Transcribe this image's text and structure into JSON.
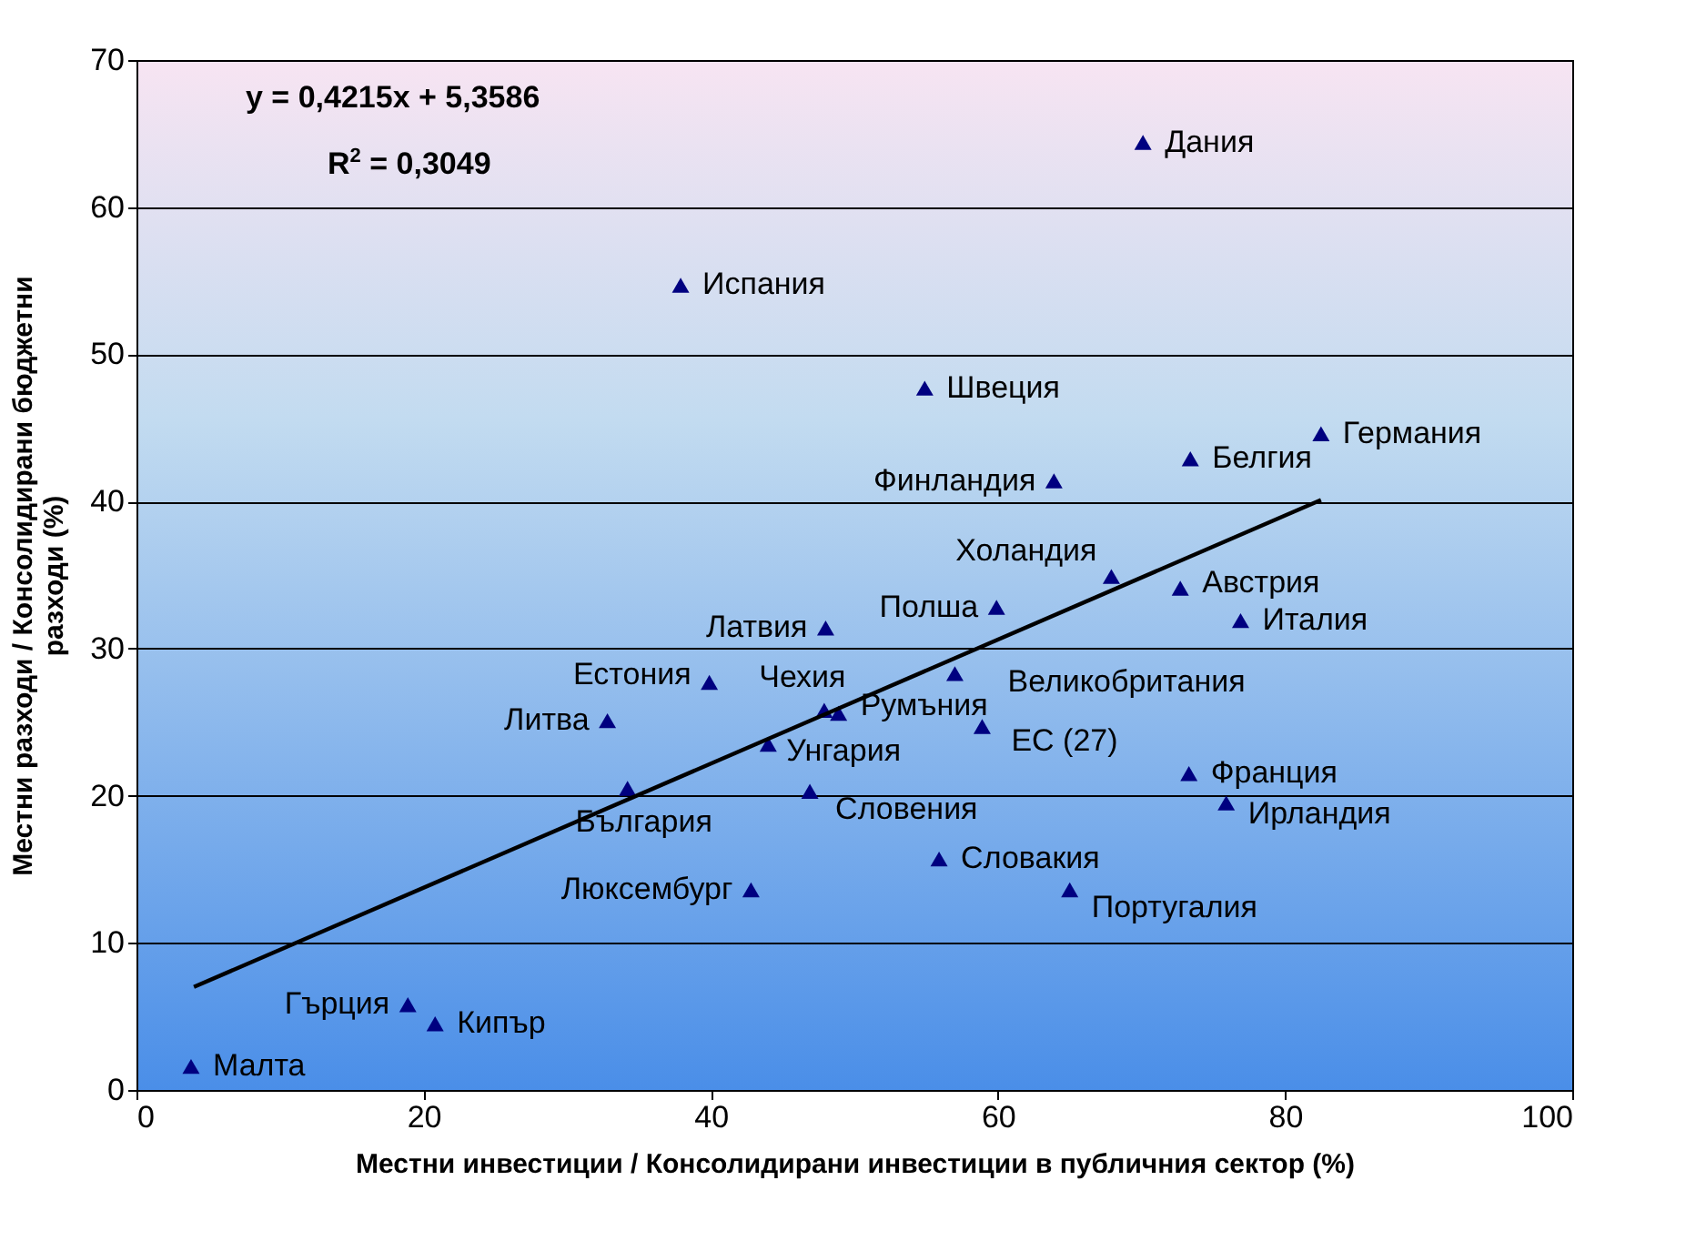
{
  "chart_data": {
    "type": "scatter",
    "xlabel": "Местни инвестиции / Консолидирани инвестиции в публичния сектор (%)",
    "ylabel": "Местни разходи / Консолидирани бюджетни разходи (%)",
    "xlim": [
      0,
      100
    ],
    "xticks": [
      0,
      20,
      40,
      60,
      80,
      100
    ],
    "ylim": [
      0,
      70
    ],
    "yticks": [
      0,
      10,
      20,
      30,
      40,
      50,
      60,
      70
    ],
    "grid": "y",
    "series": [
      {
        "color": "#000080",
        "marker": "triangle",
        "x": [
          70.1,
          37.9,
          54.9,
          82.5,
          73.4,
          63.9,
          67.9,
          72.7,
          76.9,
          59.9,
          48.0,
          39.9,
          47.9,
          48.9,
          57.0,
          32.8,
          58.9,
          44.0,
          73.3,
          75.9,
          34.2,
          46.9,
          55.9,
          65.0,
          42.8,
          18.9,
          20.8,
          3.8
        ],
        "values": [
          64.4,
          54.7,
          47.7,
          44.6,
          42.9,
          41.4,
          34.9,
          34.1,
          31.9,
          32.8,
          31.4,
          27.7,
          25.8,
          25.6,
          28.3,
          25.1,
          24.7,
          23.5,
          21.5,
          19.5,
          20.5,
          20.3,
          15.7,
          13.6,
          13.6,
          5.8,
          4.5,
          1.6
        ]
      },
      {
        "type": "line",
        "color": "#000000",
        "x": [
          4,
          82.5
        ],
        "values": [
          7.0,
          40.1
        ]
      }
    ],
    "annotations": [
      "y = 0,4215x + 5,3586",
      "R$^{2}$ = 0,3049",
      {
        "text": "Дания",
        "x": 70.1,
        "y": 64.4
      },
      {
        "text": "Испания",
        "x": 37.9,
        "y": 54.7
      },
      {
        "text": "Швеция",
        "x": 54.9,
        "y": 47.7
      },
      {
        "text": "Германия",
        "x": 82.5,
        "y": 44.6
      },
      {
        "text": "Белгия",
        "x": 73.4,
        "y": 42.9
      },
      {
        "text": "Финландия",
        "x": 63.9,
        "y": 41.4
      },
      {
        "text": "Холандия",
        "x": 67.9,
        "y": 34.9
      },
      {
        "text": "Австрия",
        "x": 72.7,
        "y": 34.1
      },
      {
        "text": "Италия",
        "x": 76.9,
        "y": 31.9
      },
      {
        "text": "Полша",
        "x": 59.9,
        "y": 32.8
      },
      {
        "text": "Латвия",
        "x": 48.0,
        "y": 31.4
      },
      {
        "text": "Естония",
        "x": 39.9,
        "y": 27.7
      },
      {
        "text": "Чехия",
        "x": 47.9,
        "y": 25.8
      },
      {
        "text": "Румъния",
        "x": 48.9,
        "y": 25.6
      },
      {
        "text": "Великобритания",
        "x": 57.0,
        "y": 28.3
      },
      {
        "text": "Литва",
        "x": 32.8,
        "y": 25.1
      },
      {
        "text": "ЕС (27)",
        "x": 58.9,
        "y": 24.7
      },
      {
        "text": "Унгария",
        "x": 44.0,
        "y": 23.5
      },
      {
        "text": "Франция",
        "x": 73.3,
        "y": 21.5
      },
      {
        "text": "Ирландия",
        "x": 75.9,
        "y": 19.5
      },
      {
        "text": "България",
        "x": 34.2,
        "y": 20.5
      },
      {
        "text": "Словения",
        "x": 46.9,
        "y": 20.3
      },
      {
        "text": "Словакия",
        "x": 55.9,
        "y": 15.7
      },
      {
        "text": "Португалия",
        "x": 65.0,
        "y": 13.6
      },
      {
        "text": "Люксембург",
        "x": 42.8,
        "y": 13.6
      },
      {
        "text": "Гърция",
        "x": 18.9,
        "y": 5.8
      },
      {
        "text": "Кипър",
        "x": 20.8,
        "y": 4.5
      },
      {
        "text": "Малта",
        "x": 3.8,
        "y": 1.6
      }
    ]
  }
}
